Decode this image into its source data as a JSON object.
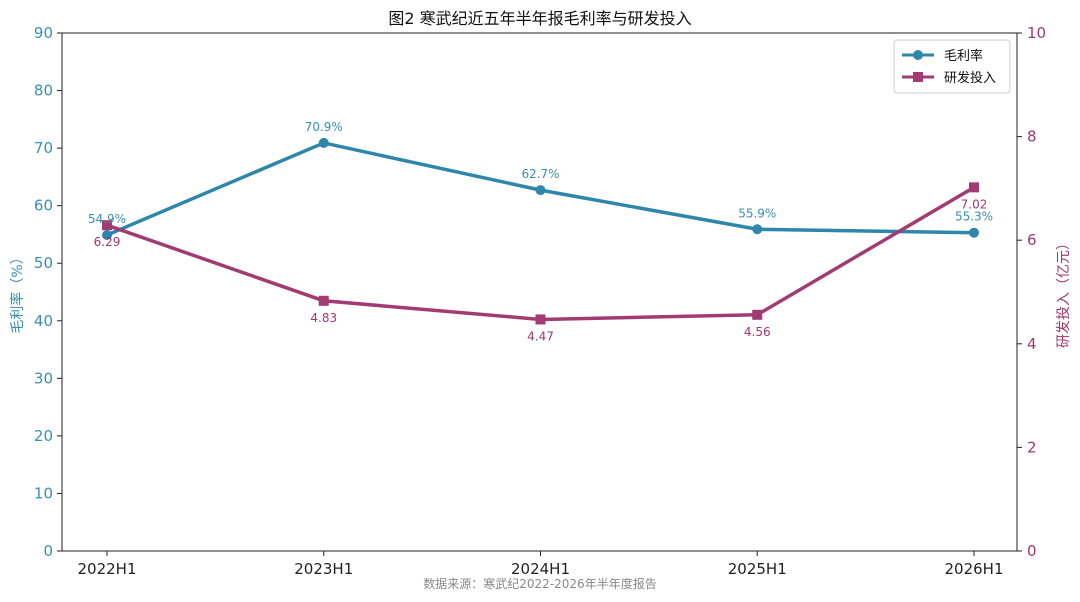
{
  "chart_data": {
    "type": "line",
    "title": "图2 寒武纪近五年半年报毛利率与研发投入",
    "categories": [
      "2022H1",
      "2023H1",
      "2024H1",
      "2025H1",
      "2026H1"
    ],
    "series": [
      {
        "name": "毛利率",
        "axis": "left",
        "color": "#2e86ab",
        "marker": "circle",
        "values": [
          54.9,
          70.9,
          62.7,
          55.9,
          55.3
        ],
        "labels": [
          "54.9%",
          "70.9%",
          "62.7%",
          "55.9%",
          "55.3%"
        ]
      },
      {
        "name": "研发投入",
        "axis": "right",
        "color": "#a23b72",
        "marker": "square",
        "values": [
          6.29,
          4.83,
          4.47,
          4.56,
          7.02
        ],
        "labels": [
          "6.29",
          "4.83",
          "4.47",
          "4.56",
          "7.02"
        ]
      }
    ],
    "ylabel_left": "毛利率（%）",
    "ylabel_right": "研发投入（亿元）",
    "ylim_left": [
      0,
      90
    ],
    "yticks_left": [
      0,
      10,
      20,
      30,
      40,
      50,
      60,
      70,
      80,
      90
    ],
    "ylim_right": [
      0,
      10
    ],
    "yticks_right": [
      0,
      2,
      4,
      6,
      8,
      10
    ],
    "grid": false,
    "legend": "top-right",
    "source_note": "数据来源：寒武纪2022-2026年半年度报告"
  }
}
